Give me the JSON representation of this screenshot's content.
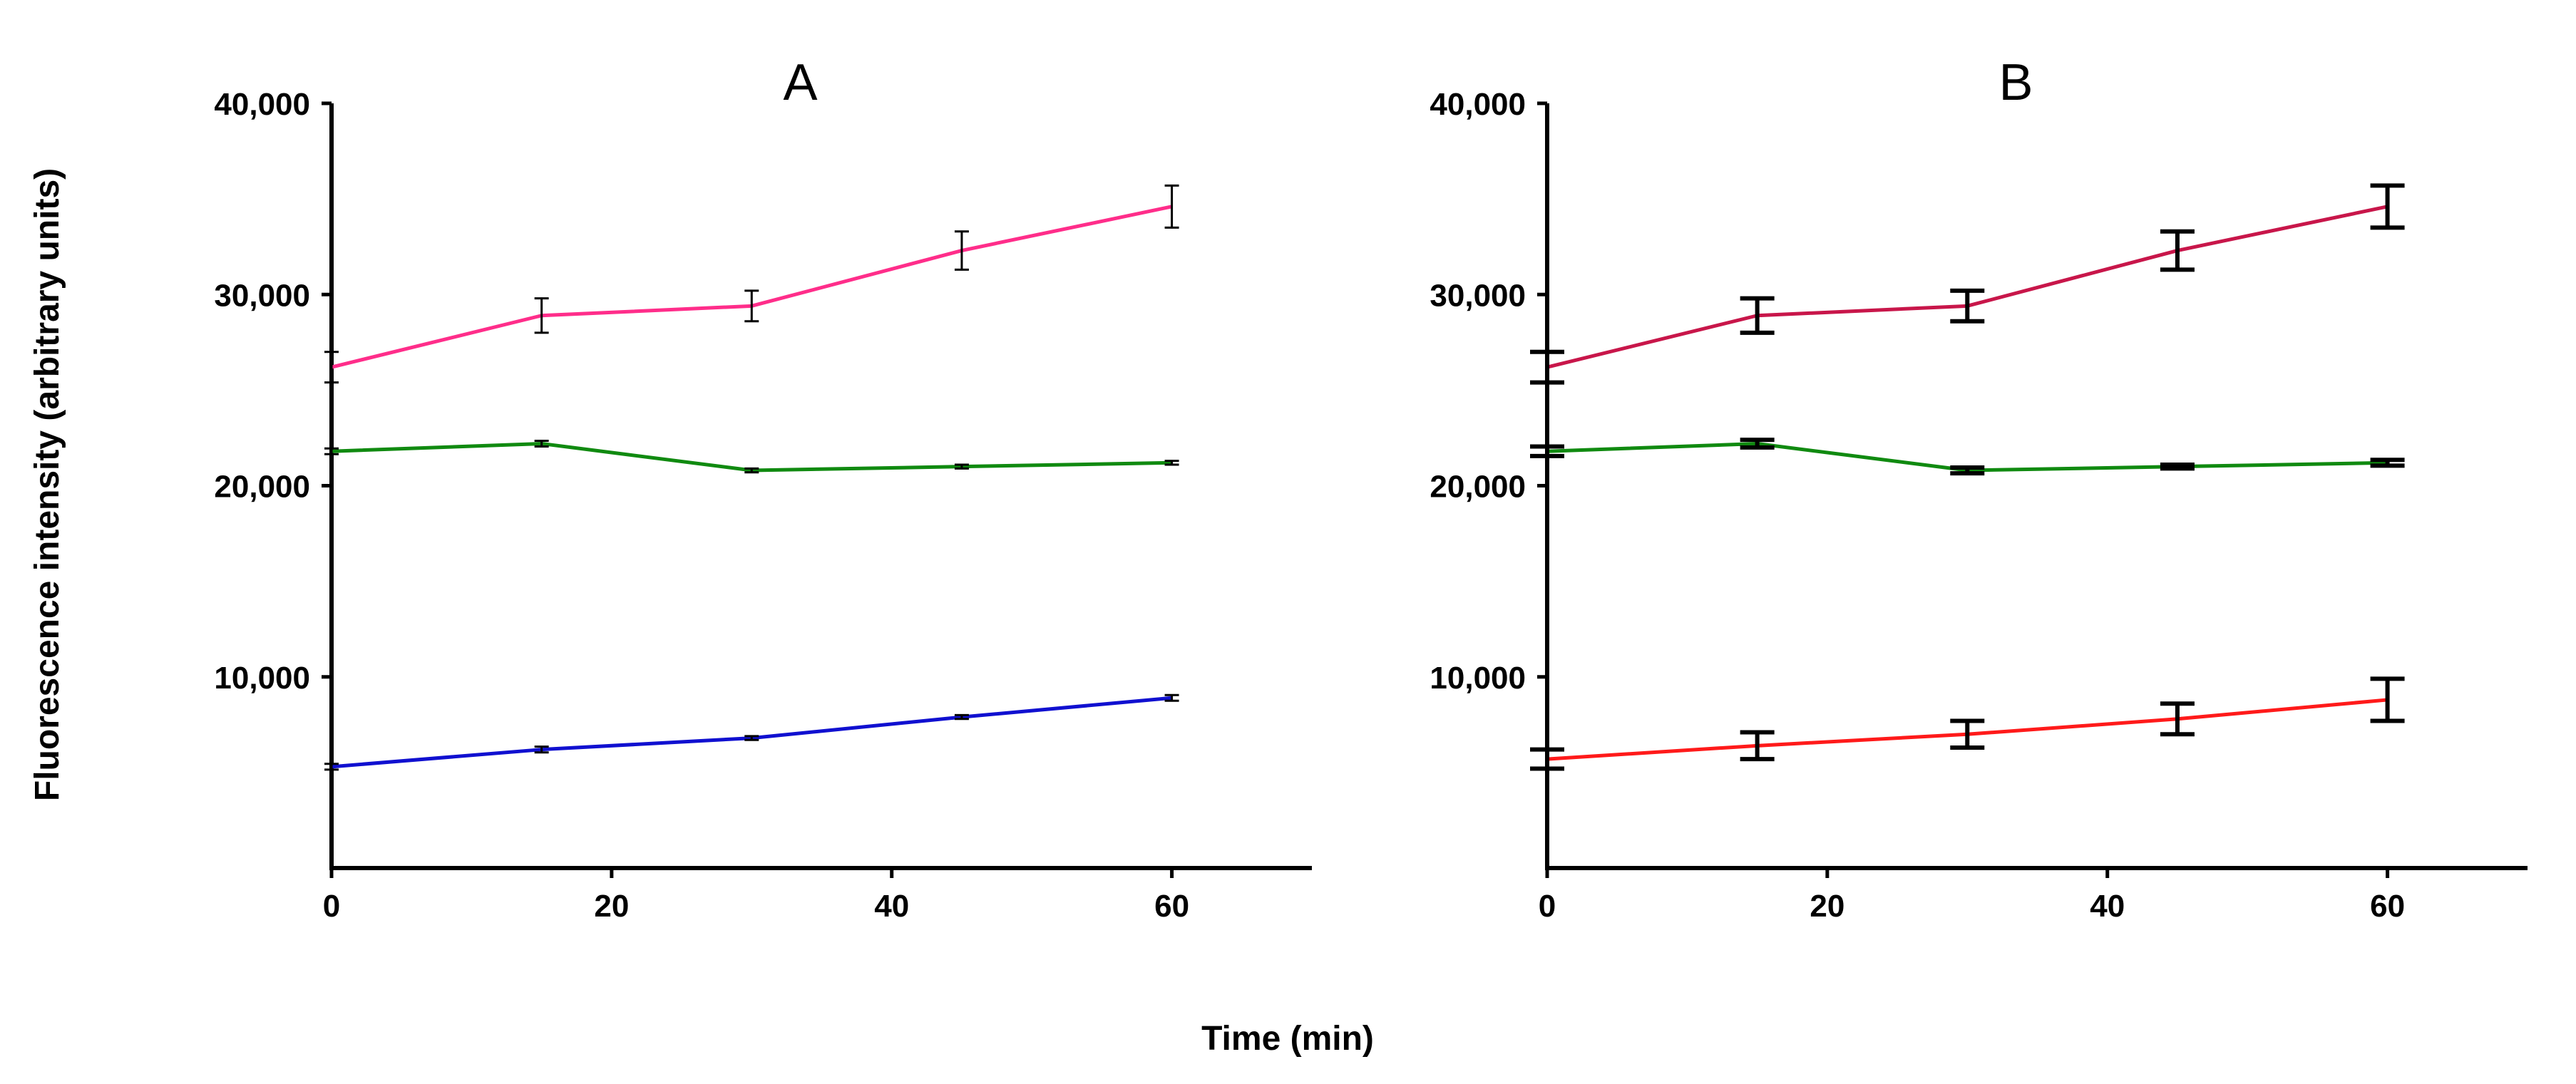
{
  "figure": {
    "ylabel": "Fluorescence intensity (arbitrary units)",
    "xlabel": "Time (min)"
  },
  "chart_data": [
    {
      "type": "line",
      "title": "A",
      "x": [
        0,
        15,
        30,
        45,
        60
      ],
      "xlim": [
        0,
        70
      ],
      "ylim": [
        0,
        40000
      ],
      "xticks": [
        0,
        20,
        40,
        60
      ],
      "xtick_labels": [
        "0",
        "20",
        "40",
        "60"
      ],
      "yticks": [
        10000,
        20000,
        30000,
        40000
      ],
      "ytick_labels": [
        "10,000",
        "20,000",
        "30,000",
        "40,000"
      ],
      "errorbar_style": "thin",
      "series": [
        {
          "name": "pink",
          "color": "#ff2d8a",
          "values": [
            26200,
            28900,
            29400,
            32300,
            34600
          ],
          "errors": [
            800,
            900,
            800,
            1000,
            1100
          ]
        },
        {
          "name": "green",
          "color": "#108a10",
          "values": [
            21800,
            22200,
            20800,
            21000,
            21200
          ],
          "errors": [
            150,
            150,
            100,
            100,
            100
          ]
        },
        {
          "name": "blue",
          "color": "#1010d0",
          "values": [
            5300,
            6200,
            6800,
            7900,
            8900
          ],
          "errors": [
            150,
            150,
            100,
            100,
            150
          ]
        }
      ]
    },
    {
      "type": "line",
      "title": "B",
      "x": [
        0,
        15,
        30,
        45,
        60
      ],
      "xlim": [
        0,
        70
      ],
      "ylim": [
        0,
        40000
      ],
      "xticks": [
        0,
        20,
        40,
        60
      ],
      "xtick_labels": [
        "0",
        "20",
        "40",
        "60"
      ],
      "yticks": [
        10000,
        20000,
        30000,
        40000
      ],
      "ytick_labels": [
        "10,000",
        "20,000",
        "30,000",
        "40,000"
      ],
      "errorbar_style": "thick",
      "series": [
        {
          "name": "crimson",
          "color": "#c8164a",
          "values": [
            26200,
            28900,
            29400,
            32300,
            34600
          ],
          "errors": [
            800,
            900,
            800,
            1000,
            1100
          ]
        },
        {
          "name": "green",
          "color": "#108a10",
          "values": [
            21800,
            22200,
            20800,
            21000,
            21200
          ],
          "errors": [
            250,
            200,
            150,
            100,
            150
          ]
        },
        {
          "name": "red",
          "color": "#ff1a1a",
          "values": [
            5700,
            6400,
            7000,
            7800,
            8800
          ],
          "errors": [
            500,
            700,
            700,
            800,
            1100
          ]
        }
      ]
    }
  ]
}
